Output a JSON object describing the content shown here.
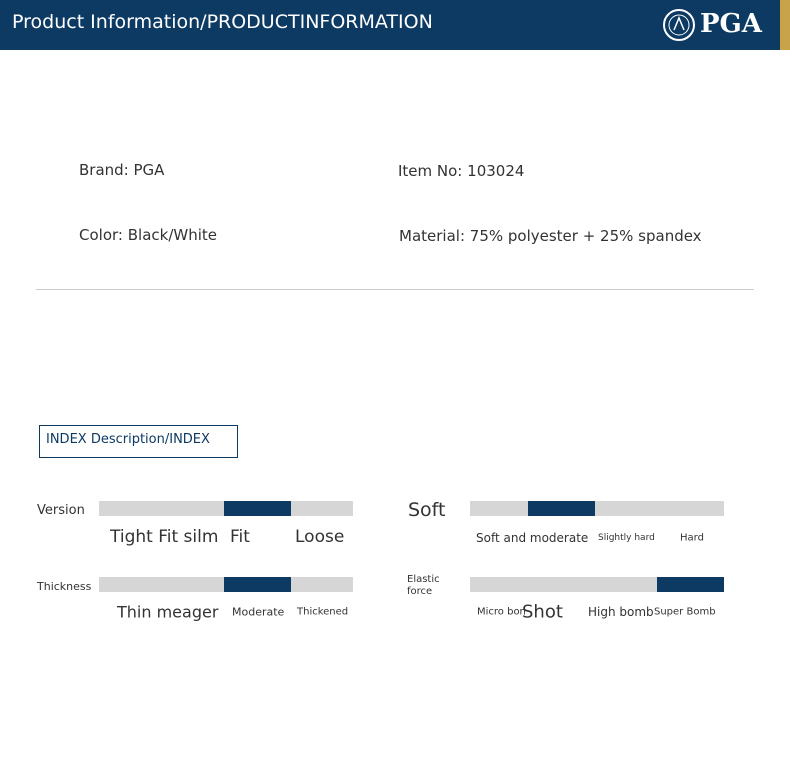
{
  "header": {
    "title": "Product Information/PRODUCTINFORMATION",
    "logo": "PGA"
  },
  "info": [
    {
      "label": "Brand:",
      "value": "PGA"
    },
    {
      "label": "Item No:",
      "value": "103024"
    },
    {
      "label": "Color:",
      "value": "Black/White"
    },
    {
      "label": "Material:",
      "value": "75% polyester + 25% spandex"
    }
  ],
  "index_title": "INDEX Description/INDEX",
  "scales": [
    {
      "label": "Version",
      "options": [
        "Tight Fit silm",
        "Fit",
        "Loose"
      ],
      "selected": 1
    },
    {
      "label": "Thickness",
      "options": [
        "Thin meager",
        "Moderate",
        "Thickened"
      ],
      "selected": 1
    },
    {
      "label": "Soft",
      "options": [
        "Soft and moderate",
        "Slightly hard",
        "Hard"
      ],
      "selected": 1
    },
    {
      "label": "Elastic force",
      "options": [
        "Micro bon",
        "Shot",
        "High bomb",
        "Super Bomb"
      ],
      "selected": 3
    }
  ]
}
